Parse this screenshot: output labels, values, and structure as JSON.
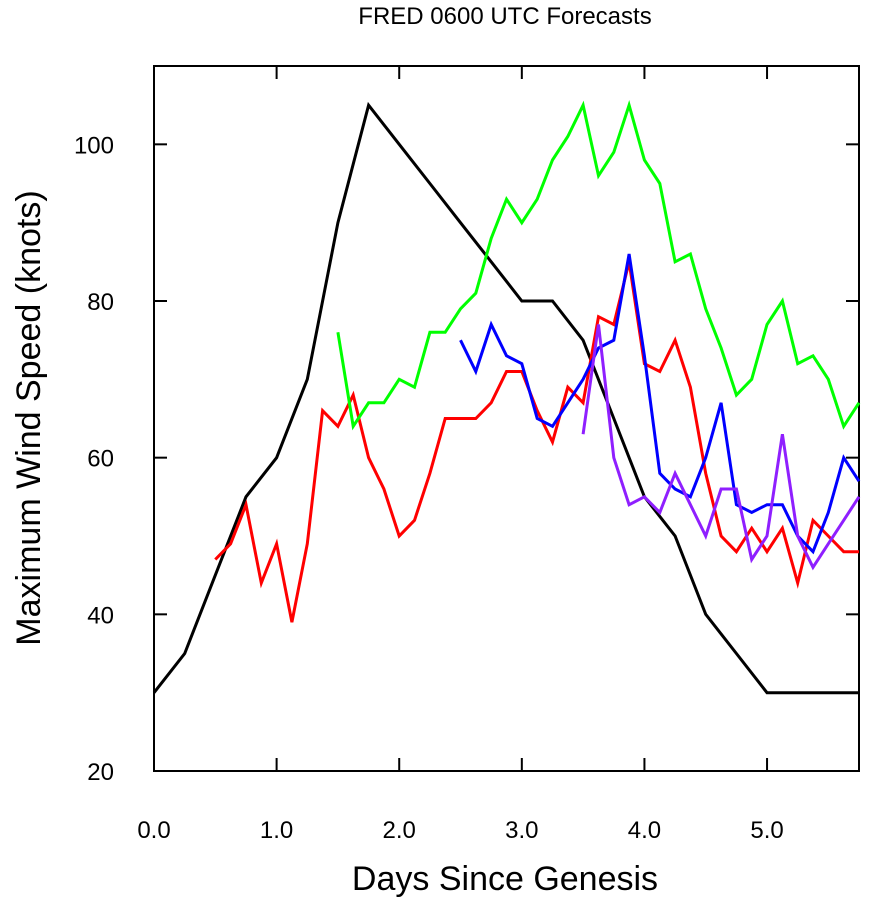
{
  "chart_data": {
    "type": "line",
    "title": "FRED 0600 UTC Forecasts",
    "xlabel": "Days Since Genesis",
    "ylabel": "Maximum Wind Speed (knots)",
    "xlim": [
      0,
      5.75
    ],
    "ylim": [
      20,
      110
    ],
    "xticks": [
      0,
      1,
      2,
      3,
      4,
      5
    ],
    "xtick_labels": [
      "0.0",
      "1.0",
      "2.0",
      "3.0",
      "4.0",
      "5.0"
    ],
    "yticks": [
      20,
      40,
      60,
      80,
      100
    ],
    "ytick_labels": [
      "20",
      "40",
      "60",
      "80",
      "100"
    ],
    "grid": false,
    "series": [
      {
        "color": "#000000",
        "points": [
          [
            0,
            30
          ],
          [
            0.25,
            35
          ],
          [
            0.5,
            45
          ],
          [
            0.75,
            55
          ],
          [
            1.0,
            60
          ],
          [
            1.25,
            70
          ],
          [
            1.5,
            90
          ],
          [
            1.75,
            105
          ],
          [
            2.0,
            100
          ],
          [
            2.25,
            95
          ],
          [
            2.5,
            90
          ],
          [
            2.75,
            85
          ],
          [
            3.0,
            80
          ],
          [
            3.25,
            80
          ],
          [
            3.5,
            75
          ],
          [
            3.75,
            65
          ],
          [
            4.0,
            55
          ],
          [
            4.25,
            50
          ],
          [
            4.5,
            40
          ],
          [
            4.75,
            35
          ],
          [
            5.0,
            30
          ],
          [
            5.25,
            30
          ],
          [
            5.5,
            30
          ],
          [
            5.75,
            30
          ]
        ]
      },
      {
        "color": "#ff0000",
        "points": [
          [
            0.5,
            47
          ],
          [
            0.625,
            49
          ],
          [
            0.75,
            54
          ],
          [
            0.875,
            44
          ],
          [
            1.0,
            49
          ],
          [
            1.125,
            39
          ],
          [
            1.25,
            49
          ],
          [
            1.375,
            66
          ],
          [
            1.5,
            64
          ],
          [
            1.625,
            68
          ],
          [
            1.75,
            60
          ],
          [
            1.875,
            56
          ],
          [
            2.0,
            50
          ],
          [
            2.125,
            52
          ],
          [
            2.25,
            58
          ],
          [
            2.375,
            65
          ],
          [
            2.5,
            65
          ],
          [
            2.625,
            65
          ],
          [
            2.75,
            67
          ],
          [
            2.875,
            71
          ],
          [
            3.0,
            71
          ],
          [
            3.125,
            66
          ],
          [
            3.25,
            62
          ],
          [
            3.375,
            69
          ],
          [
            3.5,
            67
          ],
          [
            3.625,
            78
          ],
          [
            3.75,
            77
          ],
          [
            3.875,
            85
          ],
          [
            4.0,
            72
          ],
          [
            4.125,
            71
          ],
          [
            4.25,
            75
          ],
          [
            4.375,
            69
          ],
          [
            4.5,
            58
          ],
          [
            4.625,
            50
          ],
          [
            4.75,
            48
          ],
          [
            4.875,
            51
          ],
          [
            5.0,
            48
          ],
          [
            5.125,
            51
          ],
          [
            5.25,
            44
          ],
          [
            5.375,
            52
          ],
          [
            5.5,
            50
          ],
          [
            5.625,
            48
          ],
          [
            5.75,
            48
          ]
        ]
      },
      {
        "color": "#00ff00",
        "points": [
          [
            1.5,
            76
          ],
          [
            1.625,
            64
          ],
          [
            1.75,
            67
          ],
          [
            1.875,
            67
          ],
          [
            2.0,
            70
          ],
          [
            2.125,
            69
          ],
          [
            2.25,
            76
          ],
          [
            2.375,
            76
          ],
          [
            2.5,
            79
          ],
          [
            2.625,
            81
          ],
          [
            2.75,
            88
          ],
          [
            2.875,
            93
          ],
          [
            3.0,
            90
          ],
          [
            3.125,
            93
          ],
          [
            3.25,
            98
          ],
          [
            3.375,
            101
          ],
          [
            3.5,
            105
          ],
          [
            3.625,
            96
          ],
          [
            3.75,
            99
          ],
          [
            3.875,
            105
          ],
          [
            4.0,
            98
          ],
          [
            4.125,
            95
          ],
          [
            4.25,
            85
          ],
          [
            4.375,
            86
          ],
          [
            4.5,
            79
          ],
          [
            4.625,
            74
          ],
          [
            4.75,
            68
          ],
          [
            4.875,
            70
          ],
          [
            5.0,
            77
          ],
          [
            5.125,
            80
          ],
          [
            5.25,
            72
          ],
          [
            5.375,
            73
          ],
          [
            5.5,
            70
          ],
          [
            5.625,
            64
          ],
          [
            5.75,
            67
          ]
        ]
      },
      {
        "color": "#0000ff",
        "points": [
          [
            2.5,
            75
          ],
          [
            2.625,
            71
          ],
          [
            2.75,
            77
          ],
          [
            2.875,
            73
          ],
          [
            3.0,
            72
          ],
          [
            3.125,
            65
          ],
          [
            3.25,
            64
          ],
          [
            3.375,
            67
          ],
          [
            3.5,
            70
          ],
          [
            3.625,
            74
          ],
          [
            3.75,
            75
          ],
          [
            3.875,
            86
          ],
          [
            4.0,
            73
          ],
          [
            4.125,
            58
          ],
          [
            4.25,
            56
          ],
          [
            4.375,
            55
          ],
          [
            4.5,
            60
          ],
          [
            4.625,
            67
          ],
          [
            4.75,
            54
          ],
          [
            4.875,
            53
          ],
          [
            5.0,
            54
          ],
          [
            5.125,
            54
          ],
          [
            5.25,
            50
          ],
          [
            5.375,
            48
          ],
          [
            5.5,
            53
          ],
          [
            5.625,
            60
          ],
          [
            5.75,
            57
          ]
        ]
      },
      {
        "color": "#8f1fff",
        "points": [
          [
            3.5,
            63
          ],
          [
            3.625,
            77
          ],
          [
            3.75,
            60
          ],
          [
            3.875,
            54
          ],
          [
            4.0,
            55
          ],
          [
            4.125,
            53
          ],
          [
            4.25,
            58
          ],
          [
            4.375,
            54
          ],
          [
            4.5,
            50
          ],
          [
            4.625,
            56
          ],
          [
            4.75,
            56
          ],
          [
            4.875,
            47
          ],
          [
            5.0,
            50
          ],
          [
            5.125,
            63
          ],
          [
            5.25,
            50
          ],
          [
            5.375,
            46
          ],
          [
            5.5,
            49
          ],
          [
            5.625,
            52
          ],
          [
            5.75,
            55
          ]
        ]
      }
    ]
  }
}
